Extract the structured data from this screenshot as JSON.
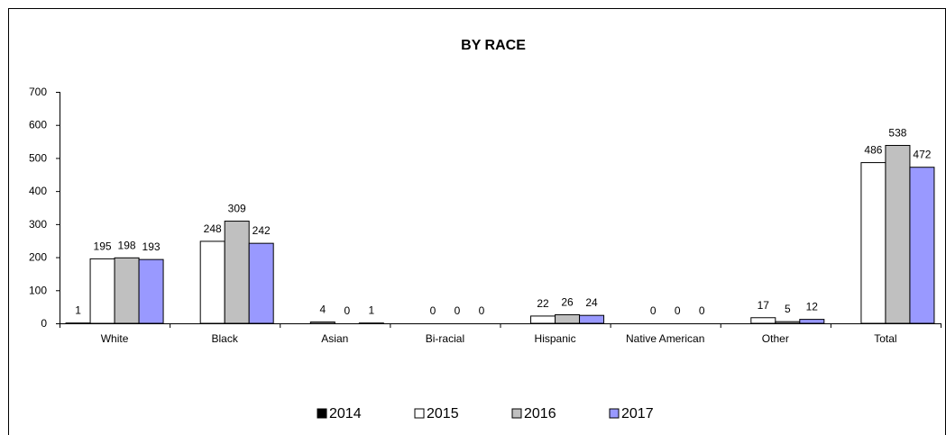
{
  "chart_data": {
    "type": "bar",
    "title": "BY RACE",
    "xlabel": "",
    "ylabel": "",
    "ylim": [
      0,
      700
    ],
    "yticks": [
      0,
      100,
      200,
      300,
      400,
      500,
      600,
      700
    ],
    "grid": false,
    "legend_position": "bottom",
    "categories": [
      "White",
      "Black",
      "Asian",
      "Bi-racial",
      "Hispanic",
      "Native American",
      "Other",
      "Total"
    ],
    "series": [
      {
        "name": "2014",
        "color": "#000000",
        "values": [
          1,
          0,
          0,
          0,
          0,
          0,
          0,
          0
        ],
        "labels": [
          "1",
          "",
          "",
          "",
          "",
          "",
          "",
          ""
        ]
      },
      {
        "name": "2015",
        "color": "#ffffff",
        "values": [
          195,
          248,
          4,
          0,
          22,
          0,
          17,
          486
        ],
        "labels": [
          "195",
          "248",
          "4",
          "0",
          "22",
          "0",
          "17",
          "486"
        ]
      },
      {
        "name": "2016",
        "color": "#c0c0c0",
        "values": [
          198,
          309,
          0,
          0,
          26,
          0,
          5,
          538
        ],
        "labels": [
          "198",
          "309",
          "0",
          "0",
          "26",
          "0",
          "5",
          "538"
        ]
      },
      {
        "name": "2017",
        "color": "#9999ff",
        "values": [
          193,
          242,
          1,
          0,
          24,
          0,
          12,
          472
        ],
        "labels": [
          "193",
          "242",
          "1",
          "0",
          "24",
          "0",
          "12",
          "472"
        ]
      }
    ]
  }
}
